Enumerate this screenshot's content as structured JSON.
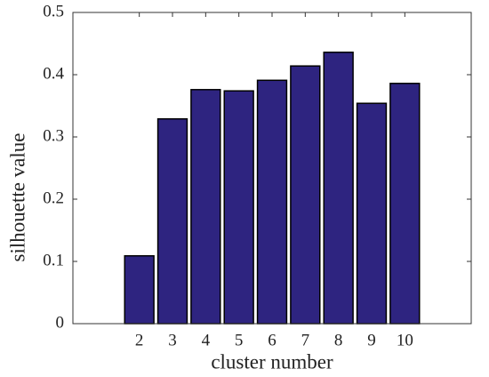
{
  "chart_data": {
    "type": "bar",
    "xlabel": "cluster number",
    "ylabel": "silhouette value",
    "x": [
      2,
      3,
      4,
      5,
      6,
      7,
      8,
      9,
      10
    ],
    "values": [
      0.109,
      0.329,
      0.376,
      0.374,
      0.391,
      0.414,
      0.436,
      0.354,
      0.386
    ],
    "color": "#2e2480",
    "xlim": [
      0,
      12
    ],
    "xticks": [
      2,
      3,
      4,
      5,
      6,
      7,
      8,
      9,
      10
    ],
    "ylim": [
      0,
      0.5
    ],
    "yticks": [
      0,
      0.1,
      0.2,
      0.3,
      0.4,
      0.5
    ]
  }
}
